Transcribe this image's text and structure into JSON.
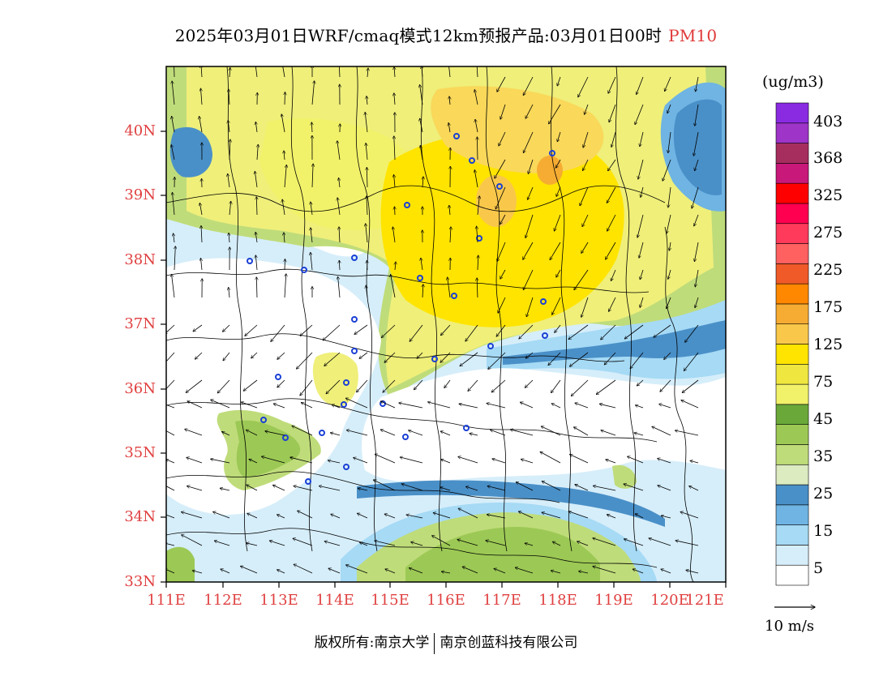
{
  "title": {
    "main": "2025年03月01日WRF/cmaq模式12km预报产品:03月01日00时",
    "pollutant": "PM10"
  },
  "map": {
    "lat_labels": [
      "40N",
      "39N",
      "38N",
      "37N",
      "36N",
      "35N",
      "34N",
      "33N"
    ],
    "lon_labels": [
      "111E",
      "112E",
      "113E",
      "114E",
      "115E",
      "116E",
      "117E",
      "118E",
      "119E",
      "120E",
      "121E"
    ],
    "lat_range": [
      33,
      41
    ],
    "lon_range": [
      111,
      121.4
    ]
  },
  "colorbar": {
    "unit": "(ug/m3)",
    "levels": [
      "5",
      "15",
      "25",
      "35",
      "45",
      "75",
      "125",
      "175",
      "225",
      "275",
      "325",
      "368",
      "403"
    ],
    "colors": [
      "#ffffff",
      "#d6eefa",
      "#a6daf5",
      "#6fb4e3",
      "#4a90c8",
      "#dcebc0",
      "#bfdc7a",
      "#9cc955",
      "#6aa83a",
      "#f2f26a",
      "#efe740",
      "#ffe400",
      "#f9c84a",
      "#f6ac32",
      "#ff8800",
      "#f05a28",
      "#ff6060",
      "#ff3a5a",
      "#ff0050",
      "#ff0000",
      "#c8187a",
      "#a62e5e",
      "#9e34c8",
      "#8a2be2"
    ]
  },
  "wind_reference": {
    "label": "10 m/s"
  },
  "footer": {
    "copyright": "版权所有:南京大学",
    "company": "南京创蓝科技有限公司"
  }
}
